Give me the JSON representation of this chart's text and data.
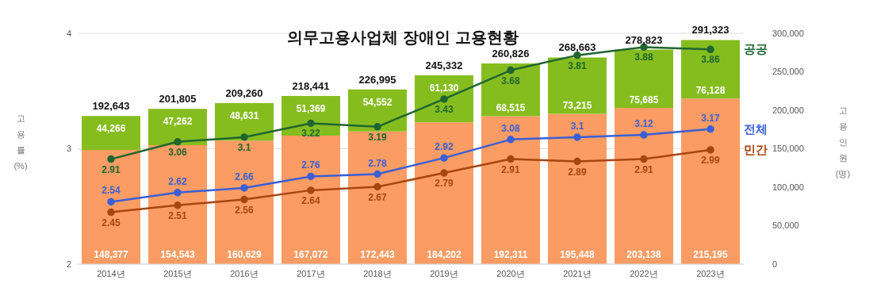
{
  "chart_data": {
    "type": "bar",
    "title": "의무고용사업체 장애인 고용현황",
    "ylabel": "고용률 (%)",
    "y2label": "고용인원 (명)",
    "categories": [
      "2014년",
      "2015년",
      "2016년",
      "2017년",
      "2018년",
      "2019년",
      "2020년",
      "2021년",
      "2022년",
      "2023년"
    ],
    "stacked": true,
    "grid": "y",
    "legend": false,
    "ylim": [
      2,
      4
    ],
    "yticks": [
      2,
      3,
      4
    ],
    "y2lim": [
      0,
      300000
    ],
    "y2ticks": [
      0,
      {
        "value": 50000,
        "label": "50,000"
      },
      {
        "value": 100000,
        "label": "100,000"
      },
      {
        "value": 150000,
        "label": "150,000"
      },
      {
        "value": 200000,
        "label": "200,000"
      },
      {
        "value": 250000,
        "label": "250,000"
      },
      {
        "value": 300000,
        "label": "300,000"
      }
    ],
    "totals": [
      "192,643",
      "201,805",
      "209,260",
      "218,441",
      "226,995",
      "245,332",
      "260,826",
      "268,663",
      "278,823",
      "291,323"
    ],
    "series": [
      {
        "axis": "y2",
        "color": "#fa9c63",
        "values": [
          148377,
          154543,
          160629,
          167072,
          172443,
          184202,
          192311,
          195448,
          203138,
          215195
        ],
        "value_labels": [
          "148,377",
          "154,543",
          "160,629",
          "167,072",
          "172,443",
          "184,202",
          "192,311",
          "195,448",
          "203,138",
          "215,195"
        ]
      },
      {
        "axis": "y2",
        "color": "#86bd1e",
        "values": [
          44266,
          47262,
          48631,
          51369,
          54552,
          61130,
          68515,
          73215,
          75685,
          76128
        ],
        "value_labels": [
          "44,266",
          "47,262",
          "48,631",
          "51,369",
          "54,552",
          "61,130",
          "68,515",
          "73,215",
          "75,685",
          "76,128"
        ]
      },
      {
        "type": "line",
        "name": "공공",
        "color": "#1f6630",
        "marker": "circle",
        "values": [
          2.91,
          3.06,
          3.1,
          3.22,
          3.19,
          3.43,
          3.68,
          3.81,
          3.88,
          3.86
        ],
        "value_labels": [
          "2.91",
          "3.06",
          "3.1",
          "3.22",
          "3.19",
          "3.43",
          "3.68",
          "3.81",
          "3.88",
          "3.86"
        ]
      },
      {
        "type": "line",
        "name": "전체",
        "color": "#3b5fd6",
        "marker": "circle",
        "values": [
          2.54,
          2.62,
          2.66,
          2.76,
          2.78,
          2.92,
          3.08,
          3.1,
          3.12,
          3.17
        ],
        "value_labels": [
          "2.54",
          "2.62",
          "2.66",
          "2.76",
          "2.78",
          "2.92",
          "3.08",
          "3.1",
          "3.12",
          "3.17"
        ]
      },
      {
        "type": "line",
        "name": "민간",
        "color": "#a8460f",
        "marker": "circle",
        "values": [
          2.45,
          2.51,
          2.56,
          2.64,
          2.67,
          2.79,
          2.91,
          2.89,
          2.91,
          2.99
        ],
        "value_labels": [
          "2.45",
          "2.51",
          "2.56",
          "2.64",
          "2.67",
          "2.79",
          "2.91",
          "2.89",
          "2.91",
          "2.99"
        ]
      }
    ]
  }
}
